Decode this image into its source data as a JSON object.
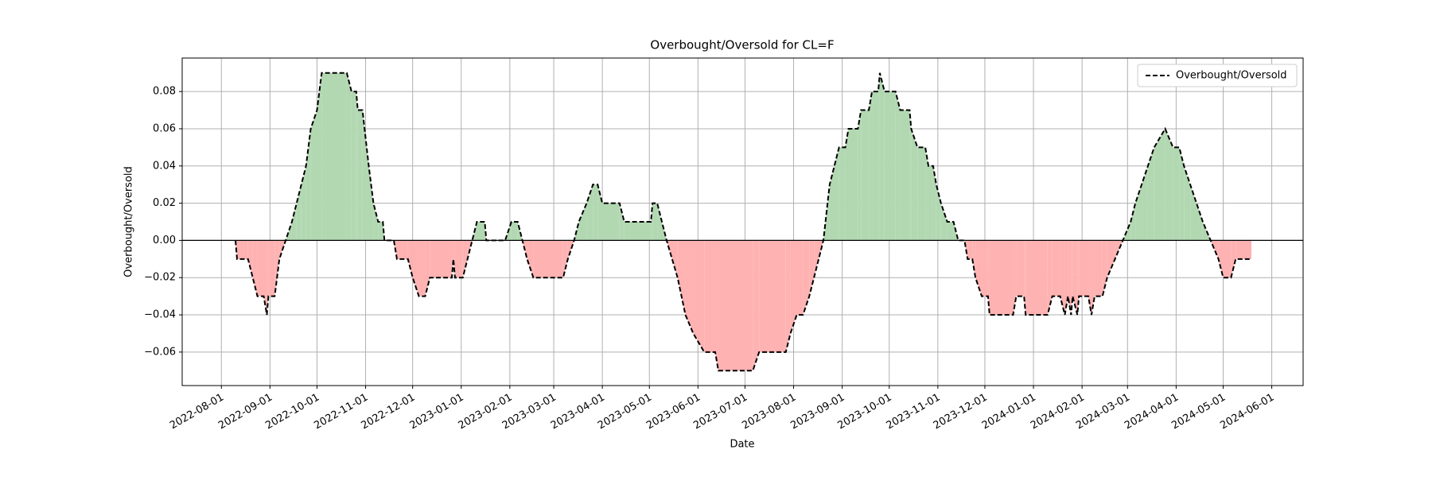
{
  "chart_data": {
    "type": "line",
    "title": "Overbought/Oversold for CL=F",
    "xlabel": "Date",
    "ylabel": "Overbought/Oversold",
    "x": [
      "2022-08-10",
      "2022-08-11",
      "2022-08-18",
      "2022-08-21",
      "2022-08-24",
      "2022-08-28",
      "2022-08-30",
      "2022-08-31",
      "2022-09-04",
      "2022-09-07",
      "2022-09-11",
      "2022-09-15",
      "2022-09-18",
      "2022-09-21",
      "2022-09-24",
      "2022-09-27",
      "2022-10-01",
      "2022-10-04",
      "2022-10-20",
      "2022-10-23",
      "2022-10-26",
      "2022-10-27",
      "2022-10-30",
      "2022-11-03",
      "2022-11-06",
      "2022-11-09",
      "2022-11-12",
      "2022-11-13",
      "2022-11-19",
      "2022-11-21",
      "2022-11-28",
      "2022-12-01",
      "2022-12-05",
      "2022-12-09",
      "2022-12-12",
      "2022-12-26",
      "2022-12-27",
      "2022-12-28",
      "2023-01-02",
      "2023-01-05",
      "2023-01-08",
      "2023-01-11",
      "2023-01-16",
      "2023-01-17",
      "2023-01-29",
      "2023-02-02",
      "2023-02-06",
      "2023-02-09",
      "2023-02-12",
      "2023-02-16",
      "2023-03-07",
      "2023-03-10",
      "2023-03-14",
      "2023-03-17",
      "2023-03-22",
      "2023-03-26",
      "2023-03-29",
      "2023-04-01",
      "2023-04-12",
      "2023-04-15",
      "2023-05-02",
      "2023-05-03",
      "2023-05-06",
      "2023-05-09",
      "2023-05-12",
      "2023-05-19",
      "2023-05-24",
      "2023-05-29",
      "2023-06-05",
      "2023-06-12",
      "2023-06-14",
      "2023-07-06",
      "2023-07-10",
      "2023-07-27",
      "2023-07-30",
      "2023-08-03",
      "2023-08-07",
      "2023-08-11",
      "2023-08-14",
      "2023-08-20",
      "2023-08-24",
      "2023-08-30",
      "2023-09-03",
      "2023-09-05",
      "2023-09-11",
      "2023-09-13",
      "2023-09-18",
      "2023-09-20",
      "2023-09-24",
      "2023-09-25",
      "2023-09-28",
      "2023-10-05",
      "2023-10-08",
      "2023-10-14",
      "2023-10-15",
      "2023-10-19",
      "2023-10-24",
      "2023-10-26",
      "2023-10-29",
      "2023-10-31",
      "2023-11-03",
      "2023-11-07",
      "2023-11-11",
      "2023-11-14",
      "2023-11-18",
      "2023-11-20",
      "2023-11-23",
      "2023-11-25",
      "2023-11-29",
      "2023-12-03",
      "2023-12-04",
      "2023-12-19",
      "2023-12-21",
      "2023-12-26",
      "2023-12-27",
      "2024-01-10",
      "2024-01-13",
      "2024-01-18",
      "2024-01-21",
      "2024-01-23",
      "2024-01-25",
      "2024-01-26",
      "2024-01-29",
      "2024-01-30",
      "2024-02-05",
      "2024-02-07",
      "2024-02-09",
      "2024-02-14",
      "2024-02-17",
      "2024-02-22",
      "2024-02-27",
      "2024-03-03",
      "2024-03-06",
      "2024-03-10",
      "2024-03-14",
      "2024-03-18",
      "2024-03-25",
      "2024-03-30",
      "2024-04-03",
      "2024-04-06",
      "2024-04-10",
      "2024-04-14",
      "2024-04-18",
      "2024-04-23",
      "2024-04-28",
      "2024-05-01",
      "2024-05-06",
      "2024-05-09",
      "2024-05-19"
    ],
    "series": [
      {
        "name": "Overbought/Oversold",
        "color": "#000000",
        "values": [
          0,
          -0.01,
          -0.01,
          -0.02,
          -0.03,
          -0.03,
          -0.04,
          -0.03,
          -0.03,
          -0.01,
          0,
          0.01,
          0.02,
          0.03,
          0.04,
          0.06,
          0.07,
          0.09,
          0.09,
          0.08,
          0.08,
          0.07,
          0.07,
          0.04,
          0.02,
          0.01,
          0.01,
          0,
          0,
          -0.01,
          -0.01,
          -0.02,
          -0.03,
          -0.03,
          -0.02,
          -0.02,
          -0.01,
          -0.02,
          -0.02,
          -0.01,
          0,
          0.01,
          0.01,
          0,
          0,
          0.01,
          0.01,
          0,
          -0.01,
          -0.02,
          -0.02,
          -0.01,
          0,
          0.01,
          0.02,
          0.03,
          0.03,
          0.02,
          0.02,
          0.01,
          0.01,
          0.02,
          0.02,
          0.01,
          0,
          -0.02,
          -0.04,
          -0.05,
          -0.06,
          -0.06,
          -0.07,
          -0.07,
          -0.06,
          -0.06,
          -0.05,
          -0.04,
          -0.04,
          -0.03,
          -0.02,
          0,
          0.03,
          0.05,
          0.05,
          0.06,
          0.06,
          0.07,
          0.07,
          0.08,
          0.08,
          0.09,
          0.08,
          0.08,
          0.07,
          0.07,
          0.06,
          0.05,
          0.05,
          0.04,
          0.04,
          0.03,
          0.02,
          0.01,
          0.01,
          0,
          0,
          -0.01,
          -0.01,
          -0.02,
          -0.03,
          -0.03,
          -0.04,
          -0.04,
          -0.03,
          -0.03,
          -0.04,
          -0.04,
          -0.03,
          -0.03,
          -0.04,
          -0.03,
          -0.04,
          -0.03,
          -0.04,
          -0.03,
          -0.03,
          -0.04,
          -0.03,
          -0.03,
          -0.02,
          -0.01,
          0,
          0.01,
          0.02,
          0.03,
          0.04,
          0.05,
          0.06,
          0.05,
          0.05,
          0.04,
          0.03,
          0.02,
          0.01,
          0,
          -0.01,
          -0.02,
          -0.02,
          -0.01,
          -0.01
        ]
      }
    ],
    "positive_color": "#b2d8b2",
    "negative_color": "#ffb2b2",
    "hline": 0,
    "xlim": [
      "2022-07-07",
      "2024-06-21"
    ],
    "xticks": [
      "2022-08-01",
      "2022-09-01",
      "2022-10-01",
      "2022-11-01",
      "2022-12-01",
      "2023-01-01",
      "2023-02-01",
      "2023-03-01",
      "2023-04-01",
      "2023-05-01",
      "2023-06-01",
      "2023-07-01",
      "2023-08-01",
      "2023-09-01",
      "2023-10-01",
      "2023-11-01",
      "2023-12-01",
      "2024-01-01",
      "2024-02-01",
      "2024-03-01",
      "2024-04-01",
      "2024-05-01",
      "2024-06-01"
    ],
    "ylim": [
      -0.078,
      0.098
    ],
    "yticks": [
      {
        "value": -0.06,
        "label": "−0.06"
      },
      {
        "value": -0.04,
        "label": "−0.04"
      },
      {
        "value": -0.02,
        "label": "−0.02"
      },
      {
        "value": 0,
        "label": "0.00"
      },
      0.02,
      0.04,
      0.06,
      0.08
    ],
    "grid": true,
    "legend": "upper right"
  }
}
